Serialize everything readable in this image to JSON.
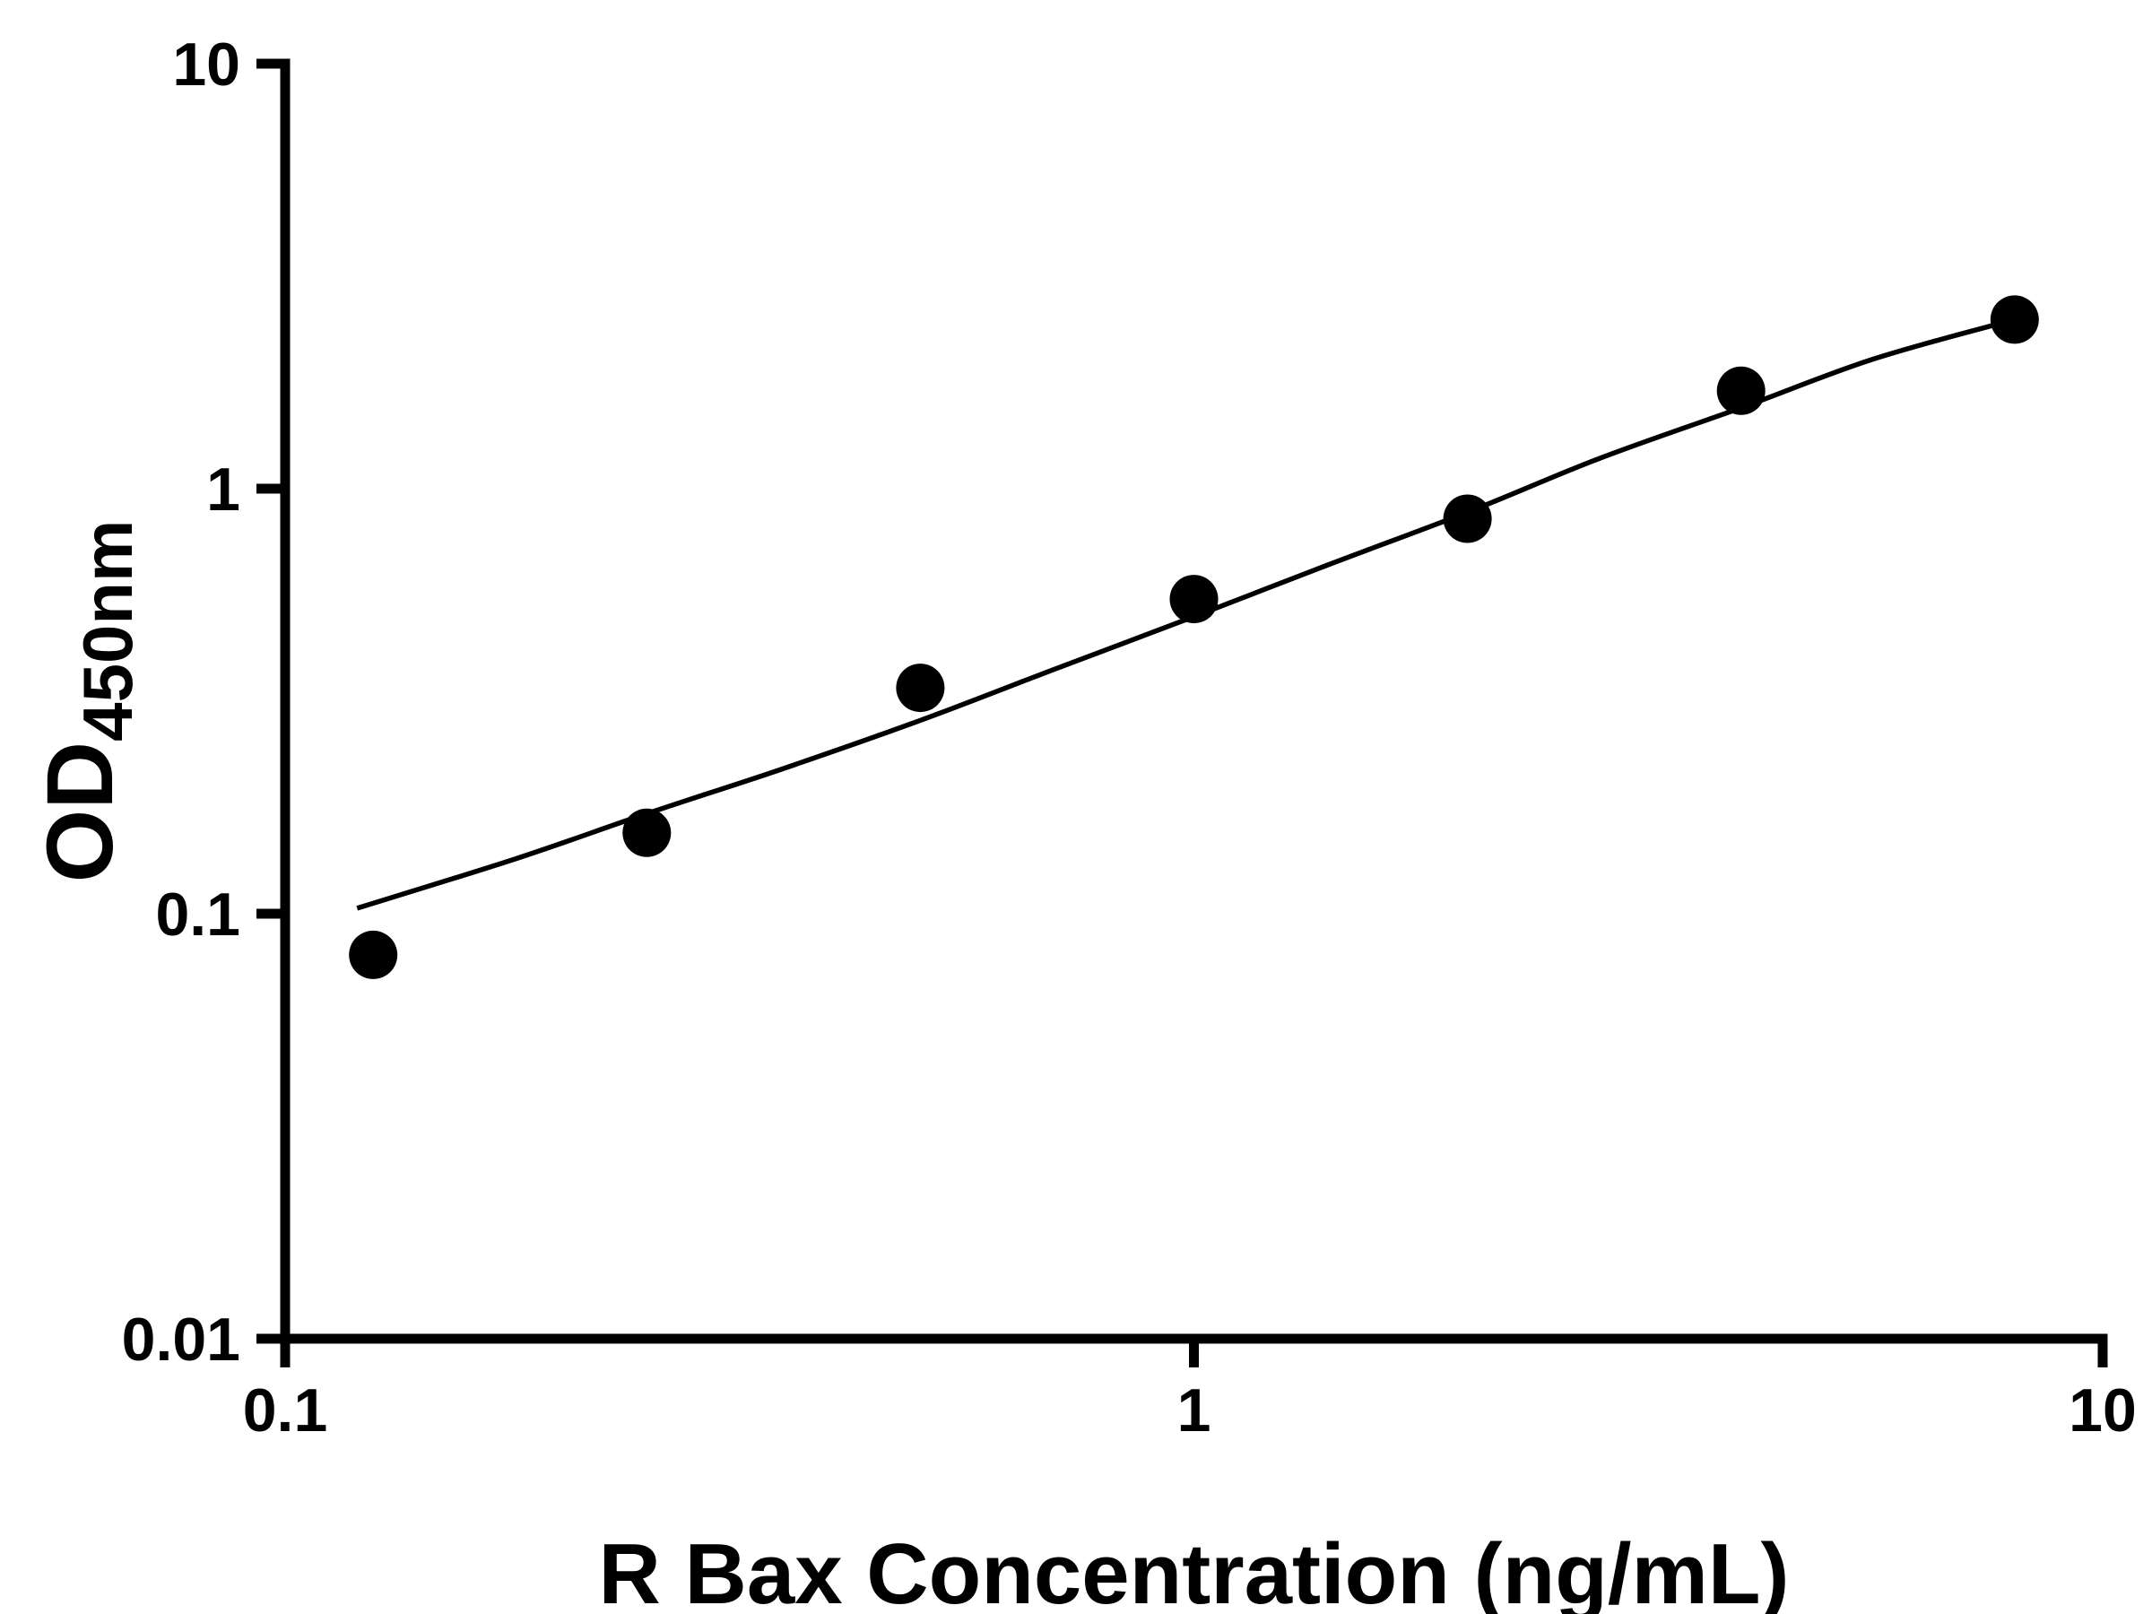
{
  "chart_data": {
    "type": "scatter",
    "title": "",
    "xlabel": "R Bax Concentration (ng/mL)",
    "ylabel_main": "OD",
    "ylabel_sub": "450nm",
    "x_scale": "log",
    "y_scale": "log",
    "xlim": [
      0.1,
      10
    ],
    "ylim": [
      0.01,
      10
    ],
    "grid": false,
    "legend": false,
    "x_ticks": [
      {
        "value": 0.1,
        "label": "0.1"
      },
      {
        "value": 1,
        "label": "1"
      },
      {
        "value": 10,
        "label": "10"
      }
    ],
    "y_ticks": [
      {
        "value": 0.01,
        "label": "0.01"
      },
      {
        "value": 0.1,
        "label": "0.1"
      },
      {
        "value": 1,
        "label": "1"
      },
      {
        "value": 10,
        "label": "10"
      }
    ],
    "points": [
      {
        "x": 0.125,
        "y": 0.08
      },
      {
        "x": 0.25,
        "y": 0.155
      },
      {
        "x": 0.5,
        "y": 0.34
      },
      {
        "x": 1,
        "y": 0.55
      },
      {
        "x": 2,
        "y": 0.85
      },
      {
        "x": 4,
        "y": 1.7
      },
      {
        "x": 8,
        "y": 2.5
      }
    ],
    "fit_curve": [
      {
        "x": 0.12,
        "y": 0.103
      },
      {
        "x": 0.18,
        "y": 0.135
      },
      {
        "x": 0.25,
        "y": 0.172
      },
      {
        "x": 0.35,
        "y": 0.218
      },
      {
        "x": 0.5,
        "y": 0.285
      },
      {
        "x": 0.7,
        "y": 0.375
      },
      {
        "x": 1.0,
        "y": 0.5
      },
      {
        "x": 1.4,
        "y": 0.66
      },
      {
        "x": 2.0,
        "y": 0.88
      },
      {
        "x": 2.8,
        "y": 1.18
      },
      {
        "x": 4.0,
        "y": 1.55
      },
      {
        "x": 5.6,
        "y": 2.02
      },
      {
        "x": 8.0,
        "y": 2.5
      }
    ],
    "colors": {
      "points": "#000000",
      "curve": "#000000",
      "axis": "#000000",
      "background": "#ffffff"
    }
  }
}
